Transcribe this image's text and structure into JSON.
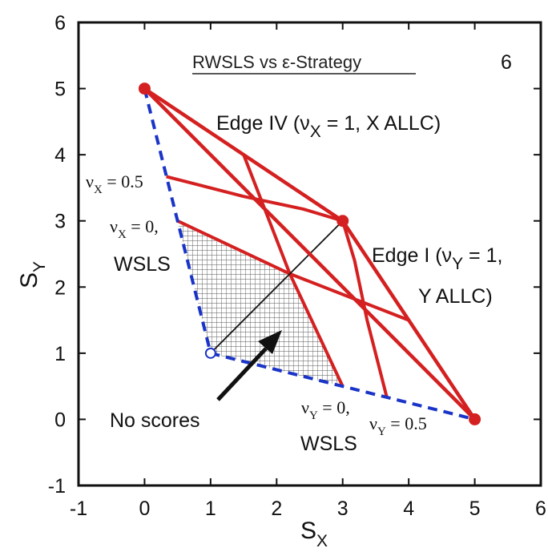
{
  "chart_data": {
    "type": "line",
    "title": "RWSLS vs ε-Strategy",
    "panel_label": "6",
    "xlabel": "S",
    "xlabel_sub": "X",
    "ylabel": "S",
    "ylabel_sub": "Y",
    "xlim": [
      -1,
      6
    ],
    "ylim": [
      -1,
      6
    ],
    "x_ticks": [
      -1,
      0,
      1,
      2,
      3,
      4,
      5,
      6
    ],
    "y_ticks": [
      -1,
      0,
      1,
      2,
      3,
      4,
      5,
      6
    ],
    "x_tick_labels": [
      "-1",
      "0",
      "1",
      "2",
      "3",
      "4",
      "5",
      "6"
    ],
    "y_tick_labels": [
      "-1",
      "0",
      "1",
      "2",
      "3",
      "4",
      "5",
      "6"
    ],
    "colors": {
      "red": "#d42020",
      "blue": "#1a34c8",
      "black": "#111111",
      "hatch": "#555555"
    },
    "boundary": {
      "dashed_blue": [
        [
          0,
          5
        ],
        [
          1,
          1
        ],
        [
          5,
          0
        ]
      ],
      "red_edges": [
        [
          [
            0,
            5
          ],
          [
            3,
            3
          ]
        ],
        [
          [
            3,
            3
          ],
          [
            5,
            0
          ]
        ],
        [
          [
            0,
            5
          ],
          [
            5,
            0
          ]
        ]
      ]
    },
    "corner_points": [
      {
        "x": 0,
        "y": 5,
        "style": "filled"
      },
      {
        "x": 3,
        "y": 3,
        "style": "filled"
      },
      {
        "x": 5,
        "y": 0,
        "style": "filled"
      },
      {
        "x": 1,
        "y": 1,
        "style": "open"
      }
    ],
    "curves": [
      {
        "name": "νX = 0",
        "points": [
          [
            0.5,
            3.0
          ],
          [
            2.2,
            2.2
          ],
          [
            4.0,
            1.5
          ]
        ]
      },
      {
        "name": "νX = 0.5",
        "points": [
          [
            0.33,
            3.67
          ],
          [
            1.5,
            3.37
          ],
          [
            2.4,
            3.18
          ],
          [
            3.0,
            3.0
          ]
        ]
      },
      {
        "name": "νY = 0",
        "points": [
          [
            3.0,
            0.5
          ],
          [
            2.2,
            2.2
          ],
          [
            1.5,
            4.0
          ]
        ]
      },
      {
        "name": "νY = 0.5",
        "points": [
          [
            3.67,
            0.33
          ],
          [
            3.37,
            1.5
          ],
          [
            3.18,
            2.4
          ],
          [
            3.0,
            3.0
          ]
        ]
      }
    ],
    "diagonal": [
      [
        1,
        1
      ],
      [
        3,
        3
      ]
    ],
    "hatched_region": [
      [
        0.5,
        3.0
      ],
      [
        1,
        1
      ],
      [
        3.0,
        0.5
      ],
      [
        2.2,
        2.2
      ]
    ],
    "annotations": {
      "edge_iv_prefix": "Edge IV (ν",
      "edge_iv_sub": "X",
      "edge_iv_suffix": " = 1, X ALLC)",
      "edge_i_prefix": "Edge I (ν",
      "edge_i_sub": "Y",
      "edge_i_suffix": " = 1,",
      "edge_i_line2": "Y ALLC)",
      "nu_x_half_prefix": "ν",
      "nu_x_half_sub": "X",
      "nu_x_half_suffix": " = 0.5",
      "nu_x_zero_prefix": "ν",
      "nu_x_zero_sub": "X",
      "nu_x_zero_suffix": " = 0,",
      "wsls_left": "WSLS",
      "nu_y_zero_prefix": "ν",
      "nu_y_zero_sub": "Y",
      "nu_y_zero_suffix": " = 0,",
      "wsls_bottom": "WSLS",
      "nu_y_half_prefix": "ν",
      "nu_y_half_sub": "Y",
      "nu_y_half_suffix": " = 0.5",
      "no_scores": "No scores"
    }
  }
}
